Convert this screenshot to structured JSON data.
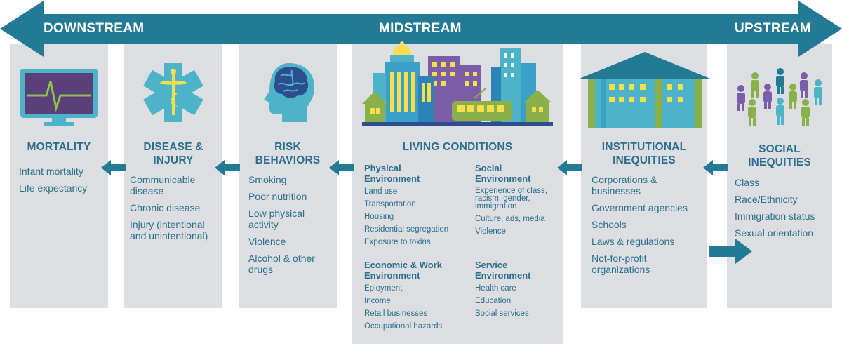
{
  "stream": {
    "downstream": "DOWNSTREAM",
    "midstream": "MIDSTREAM",
    "upstream": "UPSTREAM"
  },
  "columns": {
    "mortality": {
      "title": "MORTALITY",
      "items": [
        "Infant mortality",
        "Life expectancy"
      ]
    },
    "disease": {
      "title_line1": "DISEASE &",
      "title_line2": "INJURY",
      "items": [
        "Communicable disease",
        "Chronic disease",
        "Injury (intentional and unintentional)"
      ]
    },
    "risk": {
      "title_line1": "RISK",
      "title_line2": "BEHAVIORS",
      "items": [
        "Smoking",
        "Poor nutrition",
        "Low physical activity",
        "Violence",
        "Alcohol & other drugs"
      ]
    },
    "living": {
      "title": "LIVING CONDITIONS",
      "physical": {
        "title_line1": "Physical",
        "title_line2": "Environment",
        "items": [
          "Land use",
          "Transportation",
          "Housing",
          "Residential segregation",
          "Exposure to toxins"
        ]
      },
      "social": {
        "title_line1": "Social",
        "title_line2": "Environment",
        "items": [
          "Experience of class, racism, gender, immigration",
          "Culture, ads, media",
          "Violence"
        ]
      },
      "economic": {
        "title_line1": "Economic & Work",
        "title_line2": "Environment",
        "items": [
          "Eployment",
          "Income",
          "Retail businesses",
          "Occupational hazards"
        ]
      },
      "service": {
        "title_line1": "Service",
        "title_line2": "Environment",
        "items": [
          "Health care",
          "Education",
          "Social services"
        ]
      }
    },
    "institutional": {
      "title_line1": "INSTITUTIONAL",
      "title_line2": "INEQUITIES",
      "items": [
        "Corporations & businesses",
        "Government agencies",
        "Schools",
        "Laws & regulations",
        "Not-for-profit organizations"
      ]
    },
    "social_inequities": {
      "title_line1": "SOCIAL",
      "title_line2": "INEQUITIES",
      "items": [
        "Class",
        "Race/Ethnicity",
        "Immigration status",
        "Sexual orientation"
      ]
    }
  },
  "colors": {
    "arrow": "#227a94",
    "text": "#2b6f8d",
    "panel": "#dcdee2",
    "screen": "#5b3f7a",
    "line_green": "#8bc34a",
    "teal": "#4cb3c8",
    "purple": "#7b5ea7",
    "yellow": "#f5df4d",
    "green": "#8ab04a",
    "blue_bldg": "#3aa0c8"
  }
}
